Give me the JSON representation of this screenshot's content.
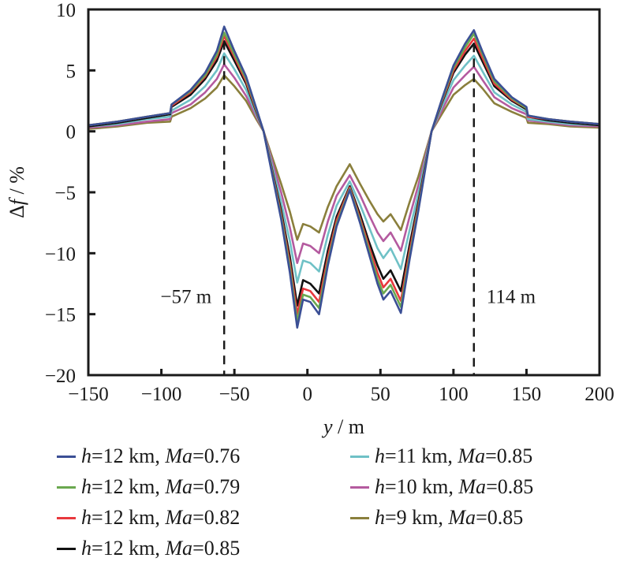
{
  "chart_data": {
    "type": "line",
    "title": "",
    "xlabel": "y / m",
    "xlabel_var": "y",
    "xlabel_unit": " / m",
    "ylabel": "Δf / %",
    "ylabel_prefix": "Δ",
    "ylabel_var": "f",
    "ylabel_unit": " / %",
    "xlim": [
      -150,
      200
    ],
    "ylim": [
      -20,
      10
    ],
    "xticks": [
      -150,
      -100,
      -50,
      0,
      50,
      100,
      150,
      200
    ],
    "xtick_labels": [
      "−150",
      "−100",
      "−50",
      "0",
      "50",
      "100",
      "150",
      "200"
    ],
    "yticks": [
      10,
      5,
      0,
      -5,
      -10,
      -15,
      -20
    ],
    "ytick_labels": [
      "10",
      "5",
      "0",
      "−5",
      "−10",
      "−15",
      "−20"
    ],
    "grid": false,
    "legend_position": "bottom",
    "annotations": [
      {
        "type": "vline",
        "x": -57,
        "label": "−57 m",
        "label_side": "left",
        "label_y": -13.5
      },
      {
        "type": "vline",
        "x": 114,
        "label": "114 m",
        "label_side": "right",
        "label_y": -13.5
      }
    ],
    "x": [
      -150,
      -130,
      -110,
      -94,
      -93,
      -80,
      -70,
      -62,
      -57,
      -50,
      -42,
      -35,
      -30,
      -25,
      -18,
      -12,
      -7,
      -3,
      2,
      8,
      14,
      20,
      29,
      36,
      42,
      48,
      52,
      57,
      64,
      70,
      76,
      85,
      92,
      100,
      108,
      114,
      120,
      128,
      140,
      150,
      151,
      165,
      180,
      200
    ],
    "series": [
      {
        "name": "h = 12 km, Ma = 0.76",
        "label_h": "12 km",
        "label_ma": "0.76",
        "color": "#3b4f95",
        "values": [
          0.5,
          0.8,
          1.2,
          1.5,
          2.2,
          3.4,
          4.8,
          6.6,
          8.6,
          6.6,
          4.5,
          1.9,
          0.0,
          -3.0,
          -7.2,
          -11.6,
          -16.1,
          -13.8,
          -14.0,
          -15.0,
          -11.0,
          -7.8,
          -4.8,
          -7.5,
          -10.0,
          -12.5,
          -13.8,
          -13.1,
          -14.9,
          -10.5,
          -6.5,
          0.0,
          2.6,
          5.4,
          7.2,
          8.3,
          6.5,
          4.3,
          2.8,
          2.0,
          1.3,
          1.0,
          0.8,
          0.6
        ]
      },
      {
        "name": "h = 12 km, Ma = 0.79",
        "label_h": "12 km",
        "label_ma": "0.79",
        "color": "#6aa84f",
        "values": [
          0.5,
          0.8,
          1.2,
          1.5,
          2.2,
          3.3,
          4.6,
          6.3,
          8.1,
          6.3,
          4.3,
          1.8,
          0.0,
          -2.9,
          -7.0,
          -11.2,
          -15.6,
          -13.4,
          -13.6,
          -14.5,
          -10.7,
          -7.6,
          -4.7,
          -7.3,
          -9.7,
          -12.1,
          -13.3,
          -12.6,
          -14.4,
          -10.2,
          -6.3,
          0.0,
          2.5,
          5.2,
          6.9,
          8.0,
          6.3,
          4.1,
          2.7,
          1.9,
          1.3,
          1.0,
          0.8,
          0.6
        ]
      },
      {
        "name": "h = 12 km, Ma = 0.82",
        "label_h": "12 km",
        "label_ma": "0.82",
        "color": "#e8383d",
        "values": [
          0.5,
          0.8,
          1.2,
          1.5,
          2.1,
          3.2,
          4.5,
          6.1,
          7.8,
          6.1,
          4.1,
          1.7,
          0.0,
          -2.8,
          -6.8,
          -10.8,
          -15.0,
          -12.9,
          -13.1,
          -14.0,
          -10.3,
          -7.3,
          -4.6,
          -7.1,
          -9.4,
          -11.6,
          -12.8,
          -12.1,
          -13.9,
          -9.8,
          -6.1,
          0.0,
          2.4,
          5.0,
          6.6,
          7.6,
          6.0,
          3.9,
          2.6,
          1.9,
          1.2,
          1.0,
          0.8,
          0.6
        ]
      },
      {
        "name": "h = 12 km, Ma = 0.85",
        "label_h": "12 km",
        "label_ma": "0.85",
        "color": "#111111",
        "values": [
          0.4,
          0.7,
          1.1,
          1.4,
          2.0,
          3.0,
          4.3,
          5.8,
          7.4,
          5.8,
          3.9,
          1.6,
          0.0,
          -2.7,
          -6.5,
          -10.3,
          -14.3,
          -12.2,
          -12.5,
          -13.3,
          -9.8,
          -7.0,
          -4.5,
          -6.8,
          -9.0,
          -11.0,
          -12.1,
          -11.4,
          -13.1,
          -9.3,
          -5.8,
          0.0,
          2.3,
          4.8,
          6.3,
          7.2,
          5.7,
          3.7,
          2.5,
          1.8,
          1.2,
          0.9,
          0.7,
          0.5
        ]
      },
      {
        "name": "h = 11 km, Ma = 0.85",
        "label_h": "11 km",
        "label_ma": "0.85",
        "color": "#6fc1c6",
        "values": [
          0.4,
          0.6,
          1.0,
          1.2,
          1.7,
          2.6,
          3.7,
          5.0,
          6.4,
          5.1,
          3.4,
          1.4,
          0.0,
          -2.4,
          -5.8,
          -9.0,
          -12.4,
          -10.6,
          -10.8,
          -11.5,
          -8.5,
          -6.1,
          -4.1,
          -6.0,
          -7.8,
          -9.6,
          -10.4,
          -9.6,
          -11.3,
          -8.1,
          -5.1,
          0.0,
          2.0,
          4.2,
          5.4,
          6.2,
          4.9,
          3.2,
          2.2,
          1.6,
          1.0,
          0.8,
          0.6,
          0.5
        ]
      },
      {
        "name": "h = 10 km, Ma = 0.85",
        "label_h": "10 km",
        "label_ma": "0.85",
        "color": "#b45a9f",
        "values": [
          0.3,
          0.5,
          0.8,
          1.0,
          1.5,
          2.2,
          3.2,
          4.3,
          5.5,
          4.4,
          2.9,
          1.2,
          0.0,
          -2.1,
          -5.0,
          -7.9,
          -10.8,
          -9.2,
          -9.4,
          -10.0,
          -7.4,
          -5.3,
          -3.6,
          -5.2,
          -6.8,
          -8.3,
          -9.0,
          -8.3,
          -9.8,
          -7.0,
          -4.4,
          0.0,
          1.7,
          3.6,
          4.6,
          5.3,
          4.2,
          2.8,
          1.9,
          1.4,
          0.9,
          0.7,
          0.5,
          0.4
        ]
      },
      {
        "name": "h = 9 km, Ma = 0.85",
        "label_h": "9 km",
        "label_ma": "0.85",
        "color": "#8a7f3c",
        "values": [
          0.2,
          0.4,
          0.7,
          0.8,
          1.2,
          1.9,
          2.7,
          3.6,
          4.6,
          3.7,
          2.5,
          1.0,
          0.0,
          -1.8,
          -4.3,
          -6.6,
          -8.9,
          -7.6,
          -7.8,
          -8.3,
          -6.2,
          -4.5,
          -2.7,
          -4.3,
          -5.6,
          -6.8,
          -7.4,
          -6.8,
          -8.1,
          -5.8,
          -3.7,
          0.0,
          1.4,
          3.0,
          3.8,
          4.3,
          3.5,
          2.3,
          1.6,
          1.1,
          0.7,
          0.6,
          0.4,
          0.3
        ]
      }
    ]
  },
  "legend": {
    "h_label": "h",
    "ma_label": "Ma",
    "eq": "=",
    "sep": ", "
  }
}
